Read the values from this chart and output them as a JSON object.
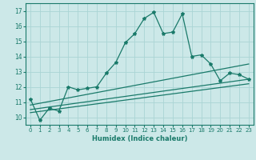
{
  "xlabel": "Humidex (Indice chaleur)",
  "ylabel": "",
  "bg_color": "#cce8e8",
  "grid_color": "#aad4d4",
  "line_color": "#1a7a6a",
  "xlim": [
    -0.5,
    23.5
  ],
  "ylim": [
    9.5,
    17.5
  ],
  "xticks": [
    0,
    1,
    2,
    3,
    4,
    5,
    6,
    7,
    8,
    9,
    10,
    11,
    12,
    13,
    14,
    15,
    16,
    17,
    18,
    19,
    20,
    21,
    22,
    23
  ],
  "yticks": [
    10,
    11,
    12,
    13,
    14,
    15,
    16,
    17
  ],
  "series1_x": [
    0,
    1,
    2,
    3,
    4,
    5,
    6,
    7,
    8,
    9,
    10,
    11,
    12,
    13,
    14,
    15,
    16,
    17,
    18,
    19,
    20,
    21,
    22,
    23
  ],
  "series1_y": [
    11.2,
    9.8,
    10.6,
    10.4,
    12.0,
    11.8,
    11.9,
    12.0,
    12.9,
    13.6,
    14.9,
    15.5,
    16.5,
    16.9,
    15.5,
    15.6,
    16.8,
    14.0,
    14.1,
    13.5,
    12.4,
    12.9,
    12.8,
    12.5
  ],
  "series2_x": [
    0,
    23
  ],
  "series2_y": [
    10.8,
    13.5
  ],
  "series3_x": [
    0,
    23
  ],
  "series3_y": [
    10.5,
    12.5
  ],
  "series4_x": [
    0,
    23
  ],
  "series4_y": [
    10.3,
    12.2
  ]
}
